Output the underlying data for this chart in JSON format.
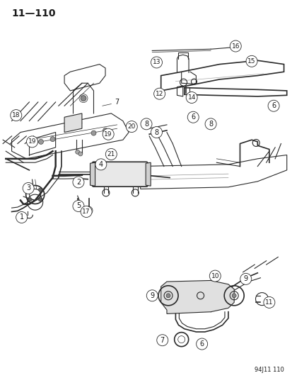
{
  "page_id": "11—110",
  "figure_id": "94J11 110",
  "background_color": "#ffffff",
  "line_color": "#2a2a2a",
  "circle_fill": "#ffffff",
  "circle_edge": "#2a2a2a",
  "text_color": "#1a1a1a",
  "title_fontsize": 10,
  "label_fontsize": 7,
  "fig_width": 4.14,
  "fig_height": 5.33,
  "dpi": 100
}
